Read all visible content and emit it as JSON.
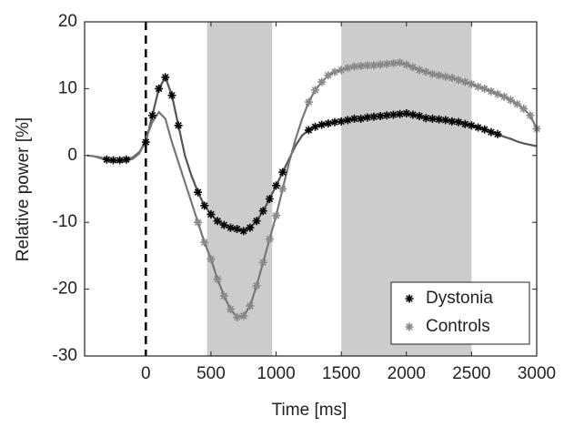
{
  "chart_data": {
    "type": "line",
    "xlabel": "Time [ms]",
    "ylabel": "Relative power [%]",
    "xlim": [
      -470,
      3000
    ],
    "ylim": [
      -30,
      20
    ],
    "xticks": [
      0,
      500,
      1000,
      1500,
      2000,
      2500,
      3000
    ],
    "yticks": [
      -30,
      -20,
      -10,
      0,
      10,
      20
    ],
    "shaded_regions": [
      [
        470,
        970
      ],
      [
        1500,
        2500
      ]
    ],
    "vline": 0,
    "legend": "lower right",
    "x": [
      -450,
      -400,
      -350,
      -300,
      -250,
      -200,
      -150,
      -100,
      -50,
      0,
      50,
      100,
      150,
      200,
      250,
      300,
      350,
      400,
      450,
      500,
      550,
      600,
      650,
      700,
      750,
      800,
      850,
      900,
      950,
      1000,
      1050,
      1100,
      1150,
      1200,
      1250,
      1300,
      1350,
      1400,
      1450,
      1500,
      1550,
      1600,
      1650,
      1700,
      1750,
      1800,
      1850,
      1900,
      1950,
      2000,
      2050,
      2100,
      2150,
      2200,
      2250,
      2300,
      2350,
      2400,
      2450,
      2500,
      2550,
      2600,
      2650,
      2700,
      2750,
      2800,
      2850,
      2900,
      2950,
      3000
    ],
    "series": [
      {
        "name": "Dystonia",
        "color": "#000000",
        "line_color": "#555555",
        "marker_ranges": [
          [
            -300,
            -150
          ],
          [
            0,
            250
          ],
          [
            400,
            1050
          ],
          [
            1250,
            2700
          ]
        ],
        "values": [
          0,
          -0.1,
          -0.3,
          -0.6,
          -0.7,
          -0.7,
          -0.6,
          -0.3,
          0.5,
          2,
          6,
          10,
          11.7,
          9,
          4.5,
          0,
          -3,
          -5.5,
          -7.5,
          -8.8,
          -9.8,
          -10.4,
          -10.8,
          -11,
          -11.3,
          -10.8,
          -9.8,
          -8.3,
          -6.5,
          -4.5,
          -2.5,
          -0.5,
          1.5,
          3,
          3.8,
          4.3,
          4.6,
          4.8,
          5,
          5.1,
          5.3,
          5.5,
          5.5,
          5.7,
          5.8,
          5.9,
          6,
          6.1,
          6.2,
          6.3,
          6.1,
          5.9,
          5.6,
          5.5,
          5.4,
          5.3,
          5.1,
          5,
          4.7,
          4.5,
          4.2,
          3.9,
          3.5,
          3.2,
          2.8,
          2.5,
          2.1,
          1.8,
          1.6,
          1.4
        ]
      },
      {
        "name": "Controls",
        "color": "#888888",
        "line_color": "#777777",
        "marker_ranges": [
          [
            400,
            1050
          ],
          [
            1250,
            3000
          ]
        ],
        "values": [
          0,
          -0.1,
          -0.4,
          -0.7,
          -0.9,
          -0.9,
          -0.8,
          -0.5,
          0.3,
          2.5,
          5,
          6.5,
          5.5,
          2,
          -1,
          -4,
          -7,
          -10,
          -13,
          -15.5,
          -18.5,
          -21,
          -23,
          -24.2,
          -24,
          -22.5,
          -19.5,
          -16,
          -12.5,
          -9,
          -5,
          -1,
          2.5,
          5.5,
          8,
          9.8,
          11,
          12,
          12.5,
          12.8,
          13.1,
          13.3,
          13.4,
          13.5,
          13.5,
          13.6,
          13.7,
          13.8,
          13.9,
          13.6,
          13.2,
          12.8,
          12.5,
          12.2,
          12,
          11.8,
          11.6,
          11.3,
          11,
          10.7,
          10.3,
          10,
          9.6,
          9.2,
          8.8,
          8.3,
          7.7,
          7,
          6,
          4
        ]
      }
    ]
  }
}
